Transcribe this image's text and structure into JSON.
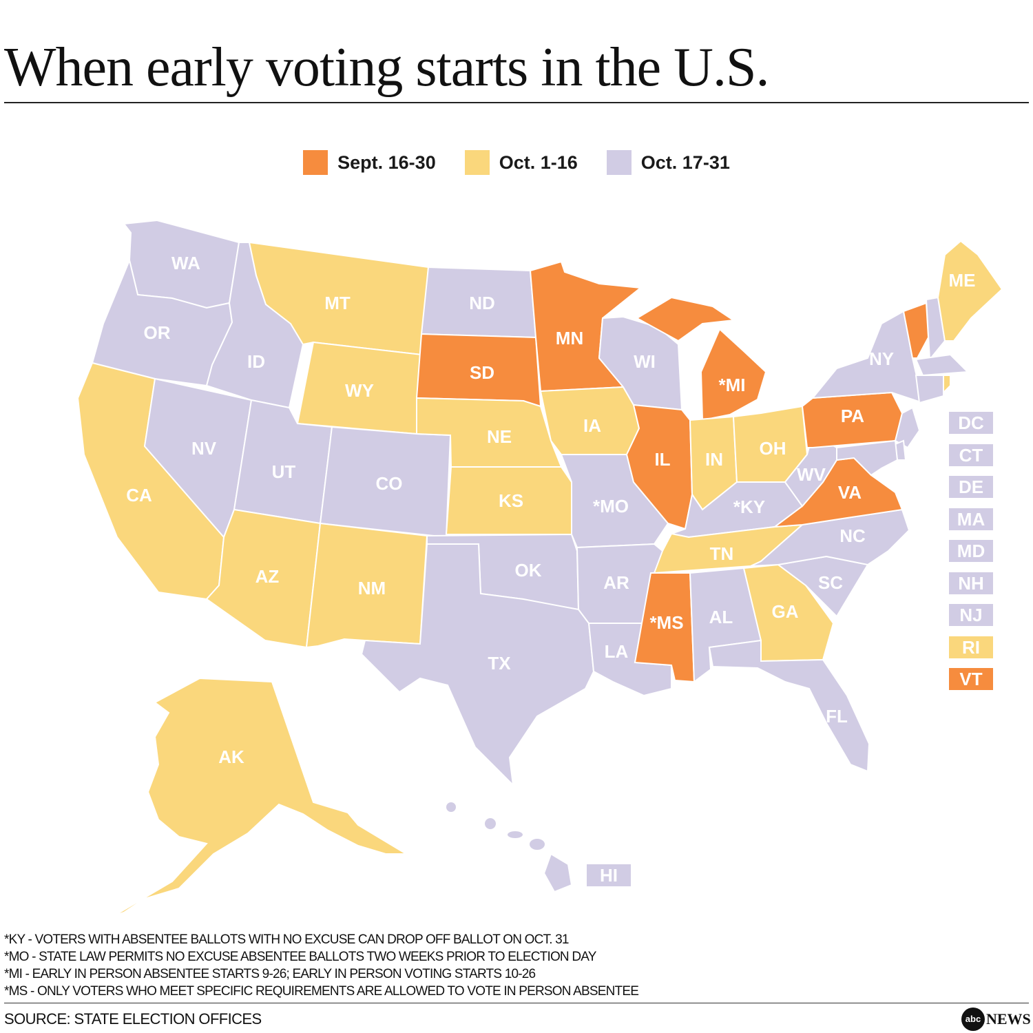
{
  "title": "When early voting starts in the U.S.",
  "legend": [
    {
      "label": "Sept. 16-30",
      "color": "#F68C3E",
      "key": "sept"
    },
    {
      "label": "Oct. 1-16",
      "color": "#FAD77C",
      "key": "oct1"
    },
    {
      "label": "Oct. 17-31",
      "color": "#D1CCE4",
      "key": "oct17"
    }
  ],
  "states": {
    "WA": {
      "label": "WA",
      "group": "oct17"
    },
    "OR": {
      "label": "OR",
      "group": "oct17"
    },
    "CA": {
      "label": "CA",
      "group": "oct1"
    },
    "ID": {
      "label": "ID",
      "group": "oct17"
    },
    "NV": {
      "label": "NV",
      "group": "oct17"
    },
    "MT": {
      "label": "MT",
      "group": "oct1"
    },
    "WY": {
      "label": "WY",
      "group": "oct1"
    },
    "UT": {
      "label": "UT",
      "group": "oct17"
    },
    "AZ": {
      "label": "AZ",
      "group": "oct1"
    },
    "CO": {
      "label": "CO",
      "group": "oct17"
    },
    "NM": {
      "label": "NM",
      "group": "oct1"
    },
    "ND": {
      "label": "ND",
      "group": "oct17"
    },
    "SD": {
      "label": "SD",
      "group": "sept"
    },
    "NE": {
      "label": "NE",
      "group": "oct1"
    },
    "KS": {
      "label": "KS",
      "group": "oct1"
    },
    "OK": {
      "label": "OK",
      "group": "oct17"
    },
    "TX": {
      "label": "TX",
      "group": "oct17"
    },
    "MN": {
      "label": "MN",
      "group": "sept"
    },
    "IA": {
      "label": "IA",
      "group": "oct1"
    },
    "MO": {
      "label": "*MO",
      "group": "oct17"
    },
    "AR": {
      "label": "AR",
      "group": "oct17"
    },
    "LA": {
      "label": "LA",
      "group": "oct17"
    },
    "WI": {
      "label": "WI",
      "group": "oct17"
    },
    "IL": {
      "label": "IL",
      "group": "sept"
    },
    "MI": {
      "label": "*MI",
      "group": "sept"
    },
    "IN": {
      "label": "IN",
      "group": "oct1"
    },
    "OH": {
      "label": "OH",
      "group": "oct1"
    },
    "KY": {
      "label": "*KY",
      "group": "oct17"
    },
    "TN": {
      "label": "TN",
      "group": "oct1"
    },
    "MS": {
      "label": "*MS",
      "group": "sept"
    },
    "AL": {
      "label": "AL",
      "group": "oct17"
    },
    "GA": {
      "label": "GA",
      "group": "oct1"
    },
    "FL": {
      "label": "FL",
      "group": "oct17"
    },
    "SC": {
      "label": "SC",
      "group": "oct17"
    },
    "NC": {
      "label": "NC",
      "group": "oct17"
    },
    "VA": {
      "label": "VA",
      "group": "sept"
    },
    "WV": {
      "label": "WV",
      "group": "oct17"
    },
    "PA": {
      "label": "PA",
      "group": "sept"
    },
    "NY": {
      "label": "NY",
      "group": "oct17"
    },
    "ME": {
      "label": "ME",
      "group": "oct1"
    },
    "AK": {
      "label": "AK",
      "group": "oct1"
    },
    "HI": {
      "label": "HI",
      "group": "oct17"
    }
  },
  "small_states": [
    {
      "label": "DC",
      "group": "oct17"
    },
    {
      "label": "CT",
      "group": "oct17"
    },
    {
      "label": "DE",
      "group": "oct17"
    },
    {
      "label": "MA",
      "group": "oct17"
    },
    {
      "label": "MD",
      "group": "oct17"
    },
    {
      "label": "NH",
      "group": "oct17"
    },
    {
      "label": "NJ",
      "group": "oct17"
    },
    {
      "label": "RI",
      "group": "oct1"
    },
    {
      "label": "VT",
      "group": "sept"
    }
  ],
  "notes": [
    "*KY - VOTERS WITH ABSENTEE BALLOTS WITH NO EXCUSE CAN DROP OFF BALLOT ON OCT. 31",
    "*MO - STATE LAW PERMITS NO EXCUSE ABSENTEE BALLOTS TWO WEEKS PRIOR TO ELECTION DAY",
    "*MI -  EARLY IN PERSON ABSENTEE STARTS 9-26; EARLY IN PERSON VOTING STARTS 10-26",
    "*MS -  ONLY VOTERS WHO MEET SPECIFIC REQUIREMENTS ARE ALLOWED TO VOTE IN PERSON ABSENTEE"
  ],
  "source": "SOURCE: STATE ELECTION OFFICES",
  "logo": {
    "circle": "abc",
    "word": "NEWS"
  }
}
